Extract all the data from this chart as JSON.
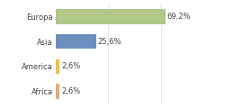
{
  "categories": [
    "Africa",
    "America",
    "Asia",
    "Europa"
  ],
  "values": [
    2.6,
    2.6,
    25.6,
    69.2
  ],
  "labels": [
    "2,6%",
    "2,6%",
    "25,6%",
    "69,2%"
  ],
  "bar_colors": [
    "#e8a878",
    "#f0c040",
    "#6e8ec0",
    "#b0c888"
  ],
  "xlim": [
    0,
    100
  ],
  "label_fontsize": 6,
  "tick_fontsize": 6,
  "background_color": "#ffffff",
  "bar_height": 0.6,
  "figsize": [
    2.8,
    1.2
  ],
  "dpi": 100
}
